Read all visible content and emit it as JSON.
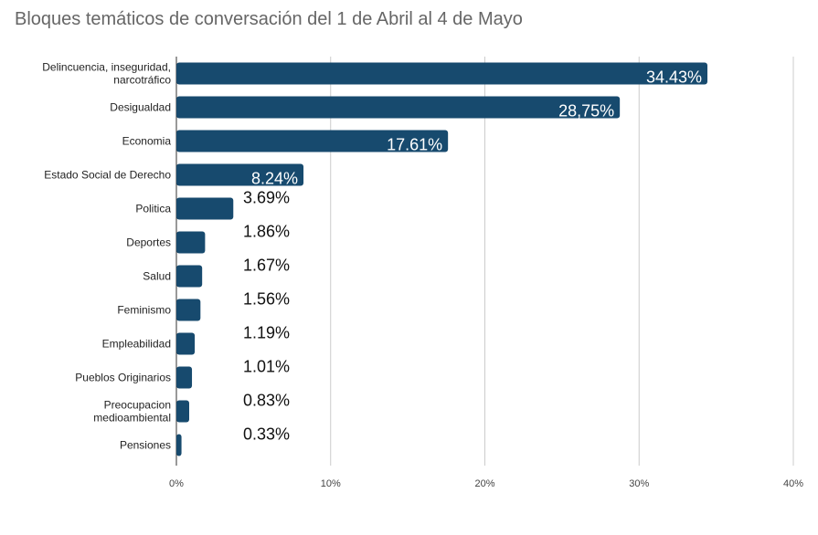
{
  "chart_data": {
    "type": "bar",
    "orientation": "horizontal",
    "title": "Bloques temáticos de conversación del 1 de Abril al 4 de Mayo",
    "categories": [
      [
        "Delincuencia, inseguridad,",
        "narcotráfico"
      ],
      [
        "Desigualdad"
      ],
      [
        "Economia"
      ],
      [
        "Estado Social de Derecho"
      ],
      [
        "Politica"
      ],
      [
        "Deportes"
      ],
      [
        "Salud"
      ],
      [
        "Feminismo"
      ],
      [
        "Empleabilidad"
      ],
      [
        "Pueblos Originarios"
      ],
      [
        "Preocupacion",
        "medioambiental"
      ],
      [
        "Pensiones"
      ]
    ],
    "values": [
      34.43,
      28.75,
      17.61,
      8.24,
      3.69,
      1.86,
      1.67,
      1.56,
      1.19,
      1.01,
      0.83,
      0.33
    ],
    "data_labels": [
      "34.43%",
      "28,75%",
      "17.61%",
      "8.24%",
      "3.69%",
      "1.86%",
      "1.67%",
      "1.56%",
      "1.19%",
      "1.01%",
      "0.83%",
      "0.33%"
    ],
    "xlim": [
      0,
      40
    ],
    "xticks": [
      0,
      10,
      20,
      30,
      40
    ],
    "xtick_labels": [
      "0%",
      "10%",
      "20%",
      "30%",
      "40%"
    ],
    "xlabel": "",
    "ylabel": "",
    "grid": "vertical",
    "legend": "none",
    "bar_color": "#174a6e",
    "grid_color": "#cccccc"
  }
}
